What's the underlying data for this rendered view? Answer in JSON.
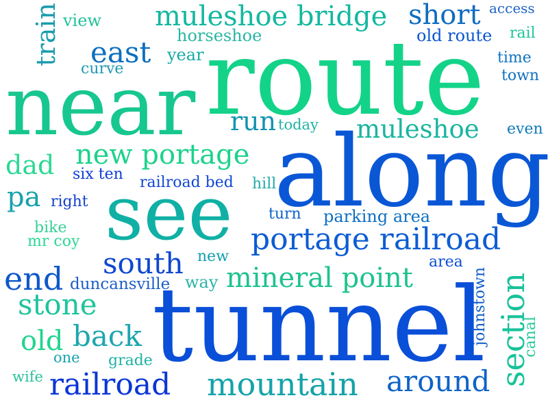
{
  "words": [
    {
      "text": "route",
      "color": "#13d389"
    },
    {
      "text": "near",
      "color": "#17c78f"
    },
    {
      "text": "along",
      "color": "#0a57d6"
    },
    {
      "text": "tunnel",
      "color": "#0a4fd8"
    },
    {
      "text": "see",
      "color": "#10b0a5"
    },
    {
      "text": "portage railroad",
      "color": "#0d5cd3"
    },
    {
      "text": "muleshoe bridge",
      "color": "#14b8a0"
    },
    {
      "text": "mineral point",
      "color": "#1fc28f"
    },
    {
      "text": "new portage",
      "color": "#1dd28c"
    },
    {
      "text": "muleshoe",
      "color": "#1ab59f"
    },
    {
      "text": "mountain",
      "color": "#14a3aa"
    },
    {
      "text": "railroad",
      "color": "#0a36d6"
    },
    {
      "text": "section",
      "color": "#18c29a"
    },
    {
      "text": "around",
      "color": "#0f63c8"
    },
    {
      "text": "south",
      "color": "#0e48cf"
    },
    {
      "text": "stone",
      "color": "#1fc49c"
    },
    {
      "text": "back",
      "color": "#1ea6ae"
    },
    {
      "text": "east",
      "color": "#0d6fbf"
    },
    {
      "text": "short",
      "color": "#0f6cbf"
    },
    {
      "text": "end",
      "color": "#0d58c9"
    },
    {
      "text": "old",
      "color": "#21d48e"
    },
    {
      "text": "run",
      "color": "#1294b0"
    },
    {
      "text": "dad",
      "color": "#2cd894"
    },
    {
      "text": "pa",
      "color": "#18a3ab"
    },
    {
      "text": "train",
      "color": "#1a9bae"
    },
    {
      "text": "old route",
      "color": "#0b56d0"
    },
    {
      "text": "horseshoe",
      "color": "#2ab5a3"
    },
    {
      "text": "year",
      "color": "#19aaa6"
    },
    {
      "text": "curve",
      "color": "#1f99b2"
    },
    {
      "text": "view",
      "color": "#23c09c"
    },
    {
      "text": "access",
      "color": "#1f63c8"
    },
    {
      "text": "rail",
      "color": "#1dc59a"
    },
    {
      "text": "time",
      "color": "#0e72c0"
    },
    {
      "text": "town",
      "color": "#0f70c2"
    },
    {
      "text": "today",
      "color": "#21b2a6"
    },
    {
      "text": "even",
      "color": "#0e79ba"
    },
    {
      "text": "six ten",
      "color": "#0c3dd6"
    },
    {
      "text": "railroad bed",
      "color": "#1047d3"
    },
    {
      "text": "hill",
      "color": "#25aaa8"
    },
    {
      "text": "right",
      "color": "#1741c9"
    },
    {
      "text": "turn",
      "color": "#0f62c7"
    },
    {
      "text": "parking area",
      "color": "#0e6fc1"
    },
    {
      "text": "bike",
      "color": "#35cf98"
    },
    {
      "text": "mr coy",
      "color": "#2ad793"
    },
    {
      "text": "new",
      "color": "#119fae"
    },
    {
      "text": "area",
      "color": "#0c4fd2"
    },
    {
      "text": "duncansville",
      "color": "#1c5ec8"
    },
    {
      "text": "way",
      "color": "#2ab4a5"
    },
    {
      "text": "johnstown",
      "color": "#0f5bca"
    },
    {
      "text": "canal",
      "color": "#2ac99b"
    },
    {
      "text": "one",
      "color": "#17a2ad"
    },
    {
      "text": "grade",
      "color": "#1fb2a4"
    },
    {
      "text": "wife",
      "color": "#29c29c"
    }
  ]
}
